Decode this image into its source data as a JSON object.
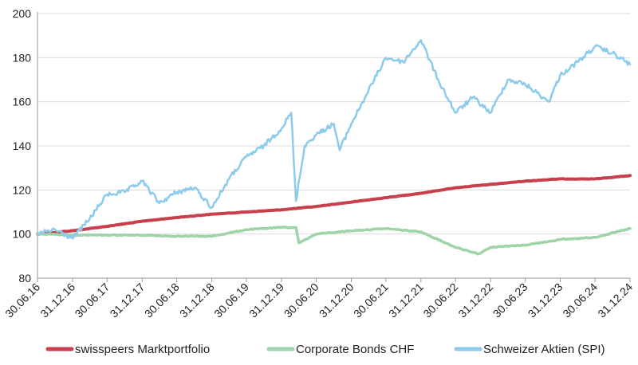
{
  "chart_data": {
    "type": "line",
    "title": "",
    "xlabel": "",
    "ylabel": "",
    "ylim": [
      80,
      200
    ],
    "yticks": [
      80,
      100,
      120,
      140,
      160,
      180,
      200
    ],
    "x_tick_labels": [
      "30.06.16",
      "31.12.16",
      "30.06.17",
      "31.12.17",
      "30.06.18",
      "31.12.18",
      "30.06.19",
      "31.12.19",
      "30.06.20",
      "31.12.20",
      "30.06.21",
      "31.12.21",
      "30.06.22",
      "31.12.22",
      "30.06.23",
      "31.12.23",
      "30.06.24",
      "31.12.24"
    ],
    "grid": "horizontal",
    "legend_position": "bottom",
    "series": [
      {
        "name": "swisspeers Marktportfolio",
        "color": "#c8404e",
        "x": [
          "30.06.16",
          "31.12.16",
          "30.06.17",
          "31.12.17",
          "30.06.18",
          "31.12.18",
          "30.06.19",
          "31.12.19",
          "30.06.20",
          "31.12.20",
          "30.06.21",
          "31.12.21",
          "30.06.22",
          "31.12.22",
          "30.06.23",
          "31.12.23",
          "30.06.24",
          "31.12.24"
        ],
        "values": [
          100,
          101.5,
          103.5,
          105.8,
          107.5,
          109,
          110,
          111,
          112.5,
          114.5,
          116.5,
          118.5,
          121,
          122.5,
          124,
          125,
          125,
          126.5
        ]
      },
      {
        "name": "Corporate Bonds CHF",
        "color": "#9fd4a8",
        "x": [
          "30.06.16",
          "31.12.16",
          "30.06.17",
          "31.12.17",
          "30.06.18",
          "31.12.18",
          "30.06.19",
          "31.12.19",
          "16.03.20",
          "31.03.20",
          "30.06.20",
          "31.12.20",
          "30.06.21",
          "31.12.21",
          "30.06.22",
          "31.10.22",
          "31.12.22",
          "30.06.23",
          "31.12.23",
          "30.06.24",
          "31.12.24"
        ],
        "values": [
          100,
          99.5,
          99.5,
          99.5,
          99,
          99,
          102,
          103,
          103,
          96,
          100,
          101.5,
          102.5,
          101,
          94,
          91,
          94,
          95,
          97.5,
          98.5,
          102.5
        ]
      },
      {
        "name": "Schweizer Aktien (SPI)",
        "color": "#8ccbeb",
        "x": [
          "30.06.16",
          "30.09.16",
          "31.12.16",
          "31.03.17",
          "30.06.17",
          "30.09.17",
          "31.12.17",
          "31.03.18",
          "30.06.18",
          "30.09.18",
          "31.12.18",
          "31.03.19",
          "30.06.19",
          "30.09.19",
          "31.12.19",
          "20.02.20",
          "16.03.20",
          "30.04.20",
          "30.06.20",
          "30.09.20",
          "31.10.20",
          "31.12.20",
          "31.03.21",
          "30.06.21",
          "30.09.21",
          "31.12.21",
          "31.03.22",
          "30.06.22",
          "30.09.22",
          "31.12.22",
          "31.03.23",
          "30.06.23",
          "31.10.23",
          "31.12.23",
          "31.03.24",
          "30.06.24",
          "30.09.24",
          "31.12.24"
        ],
        "values": [
          100,
          102,
          98,
          107,
          118,
          119,
          124,
          114,
          119,
          121,
          112,
          125,
          135,
          140,
          148,
          155,
          115,
          140,
          145,
          150,
          138,
          150,
          165,
          180,
          178,
          188,
          170,
          155,
          162,
          155,
          170,
          168,
          160,
          172,
          178,
          185,
          182,
          177
        ]
      }
    ]
  }
}
